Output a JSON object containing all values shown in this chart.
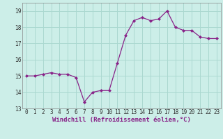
{
  "x": [
    0,
    1,
    2,
    3,
    4,
    5,
    6,
    7,
    8,
    9,
    10,
    11,
    12,
    13,
    14,
    15,
    16,
    17,
    18,
    19,
    20,
    21,
    22,
    23
  ],
  "y": [
    15.0,
    15.0,
    15.1,
    15.2,
    15.1,
    15.1,
    14.9,
    13.4,
    14.0,
    14.1,
    14.1,
    15.8,
    17.5,
    18.4,
    18.6,
    18.4,
    18.5,
    19.0,
    18.0,
    17.8,
    17.8,
    17.4,
    17.3,
    17.3
  ],
  "line_color": "#882288",
  "marker": "D",
  "marker_size": 2.0,
  "bg_color": "#cceee8",
  "grid_color": "#aad8d0",
  "xlabel": "Windchill (Refroidissement éolien,°C)",
  "ylim": [
    13,
    19.5
  ],
  "xlim": [
    -0.5,
    23.5
  ],
  "yticks": [
    13,
    14,
    15,
    16,
    17,
    18,
    19
  ],
  "xticks": [
    0,
    1,
    2,
    3,
    4,
    5,
    6,
    7,
    8,
    9,
    10,
    11,
    12,
    13,
    14,
    15,
    16,
    17,
    18,
    19,
    20,
    21,
    22,
    23
  ],
  "tick_fontsize": 5.5,
  "xlabel_fontsize": 6.5,
  "ylabel_fontsize": 6
}
